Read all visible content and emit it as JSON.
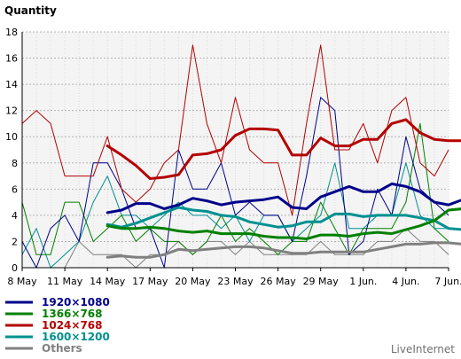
{
  "chart_data": {
    "type": "line",
    "ylabel": "Quantity",
    "ylim": [
      0,
      18
    ],
    "yticks": [
      0,
      2,
      4,
      6,
      8,
      10,
      12,
      14,
      16,
      18
    ],
    "x_count": 31,
    "xtick_labels": [
      {
        "index": 0,
        "label": "8 May"
      },
      {
        "index": 3,
        "label": "11 May"
      },
      {
        "index": 6,
        "label": "14 May"
      },
      {
        "index": 9,
        "label": "17 May"
      },
      {
        "index": 12,
        "label": "20 May"
      },
      {
        "index": 15,
        "label": "23 May"
      },
      {
        "index": 18,
        "label": "26 May"
      },
      {
        "index": 21,
        "label": "29 May"
      },
      {
        "index": 24,
        "label": "1 Jun."
      },
      {
        "index": 27,
        "label": "4 Jun."
      },
      {
        "index": 30,
        "label": "7 Jun."
      }
    ],
    "grid": true,
    "legend_position": "bottom-left",
    "series": [
      {
        "name": "1920×1080",
        "color": "#00008b",
        "daily": [
          2,
          0,
          3,
          4,
          2,
          8,
          8,
          6,
          3,
          3,
          0,
          9,
          6,
          6,
          8,
          4,
          5,
          4,
          4,
          2,
          7,
          13,
          12,
          1,
          2,
          6,
          4,
          10,
          6,
          5,
          4
        ],
        "smoothed_start": 6,
        "smoothed": [
          4.2,
          4.4,
          4.9,
          4.9,
          4.5,
          4.8,
          5.3,
          5.1,
          4.8,
          5.0,
          5.1,
          5.2,
          5.4,
          4.6,
          4.5,
          5.4,
          5.8,
          6.2,
          5.8,
          5.8,
          6.4,
          6.2,
          5.8,
          5.0,
          4.8,
          5.2
        ]
      },
      {
        "name": "1366×768",
        "color": "#008000",
        "daily": [
          5,
          1,
          1,
          5,
          5,
          2,
          3,
          4,
          2,
          3,
          2,
          2,
          1,
          2,
          4,
          2,
          3,
          2,
          1,
          2,
          2,
          5,
          3,
          1,
          3,
          3,
          3,
          5,
          11,
          3,
          2
        ],
        "smoothed_start": 6,
        "smoothed": [
          3.2,
          3.0,
          3.0,
          3.1,
          3.0,
          2.8,
          2.7,
          2.8,
          2.6,
          2.6,
          2.6,
          2.4,
          2.3,
          2.3,
          2.2,
          2.5,
          2.5,
          2.4,
          2.6,
          2.7,
          2.6,
          2.9,
          3.2,
          3.6,
          4.4,
          4.5
        ]
      },
      {
        "name": "1024×768",
        "color": "#b40000",
        "daily": [
          11,
          12,
          11,
          7,
          7,
          7,
          10,
          6,
          5,
          6,
          8,
          9,
          17,
          11,
          8,
          13,
          9,
          8,
          8,
          4,
          11,
          17,
          9,
          9,
          11,
          8,
          12,
          13,
          8,
          7,
          9
        ],
        "smoothed_start": 6,
        "smoothed": [
          9.3,
          8.6,
          7.8,
          6.8,
          6.9,
          7.1,
          8.6,
          8.7,
          9.0,
          10.1,
          10.6,
          10.6,
          10.5,
          8.6,
          8.6,
          9.9,
          9.3,
          9.3,
          9.8,
          9.8,
          11.0,
          11.3,
          10.3,
          9.8,
          9.7,
          9.7
        ]
      },
      {
        "name": "1600×1200",
        "color": "#009090",
        "daily": [
          1,
          3,
          0,
          1,
          2,
          5,
          7,
          4,
          4,
          3,
          4,
          5,
          4,
          4,
          3,
          4,
          2,
          4,
          4,
          2,
          3,
          4,
          8,
          3,
          3,
          4,
          4,
          8,
          4,
          3,
          3
        ],
        "smoothed_start": 6,
        "smoothed": [
          3.3,
          3.1,
          3.4,
          3.8,
          4.2,
          4.6,
          4.4,
          4.3,
          4.0,
          3.9,
          3.5,
          3.3,
          3.1,
          3.2,
          3.5,
          3.5,
          4.1,
          4.1,
          3.9,
          4.0,
          4.0,
          4.0,
          3.8,
          3.6,
          3.0,
          2.9
        ]
      },
      {
        "name": "Others",
        "color": "#808080",
        "daily": [
          0,
          0,
          0,
          0,
          2,
          1,
          1,
          1,
          0,
          1,
          1,
          2,
          1,
          2,
          2,
          1,
          2,
          1,
          1,
          1,
          1,
          2,
          1,
          1,
          1,
          2,
          2,
          3,
          2,
          2,
          1
        ],
        "smoothed_start": 6,
        "smoothed": [
          0.8,
          0.9,
          0.8,
          0.8,
          1.0,
          1.4,
          1.3,
          1.4,
          1.5,
          1.6,
          1.6,
          1.5,
          1.3,
          1.1,
          1.1,
          1.2,
          1.2,
          1.2,
          1.2,
          1.4,
          1.6,
          1.8,
          1.8,
          1.9,
          1.9,
          1.8
        ]
      }
    ],
    "credit": "LiveInternet"
  }
}
